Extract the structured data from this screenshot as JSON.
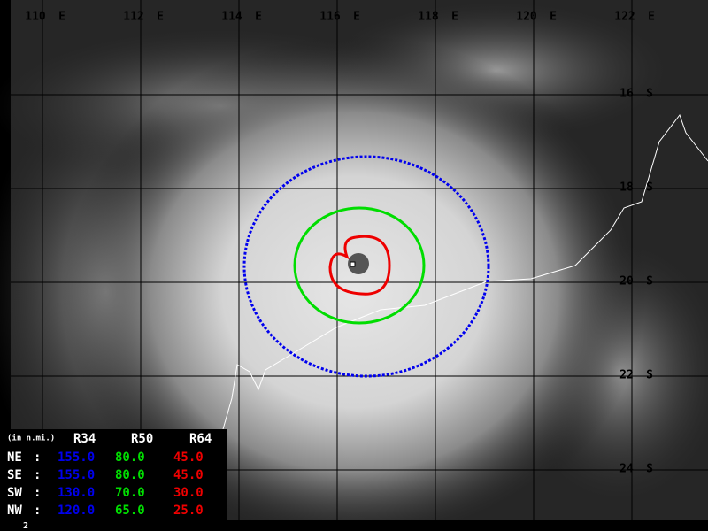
{
  "longitude_labels": [
    {
      "degrees": "110",
      "hemisphere": "E"
    },
    {
      "degrees": "112",
      "hemisphere": "E"
    },
    {
      "degrees": "114",
      "hemisphere": "E"
    },
    {
      "degrees": "116",
      "hemisphere": "E"
    },
    {
      "degrees": "118",
      "hemisphere": "E"
    },
    {
      "degrees": "120",
      "hemisphere": "E"
    },
    {
      "degrees": "122",
      "hemisphere": "E"
    }
  ],
  "latitude_labels": [
    {
      "degrees": "16",
      "hemisphere": "S"
    },
    {
      "degrees": "18",
      "hemisphere": "S"
    },
    {
      "degrees": "20",
      "hemisphere": "S"
    },
    {
      "degrees": "22",
      "hemisphere": "S"
    },
    {
      "degrees": "24",
      "hemisphere": "S"
    }
  ],
  "wind_radii_table": {
    "unit_note": "(in n.mi.)",
    "columns": [
      "R34",
      "R50",
      "R64"
    ],
    "rows": [
      {
        "quadrant": "NE",
        "cells": [
          "155.0",
          "80.0",
          "45.0"
        ]
      },
      {
        "quadrant": "SE",
        "cells": [
          "155.0",
          "80.0",
          "45.0"
        ]
      },
      {
        "quadrant": "SW",
        "cells": [
          "130.0",
          "70.0",
          "30.0"
        ]
      },
      {
        "quadrant": "NW",
        "cells": [
          "120.0",
          "65.0",
          "25.0"
        ]
      }
    ]
  },
  "footer": {
    "frame_number": "2"
  }
}
